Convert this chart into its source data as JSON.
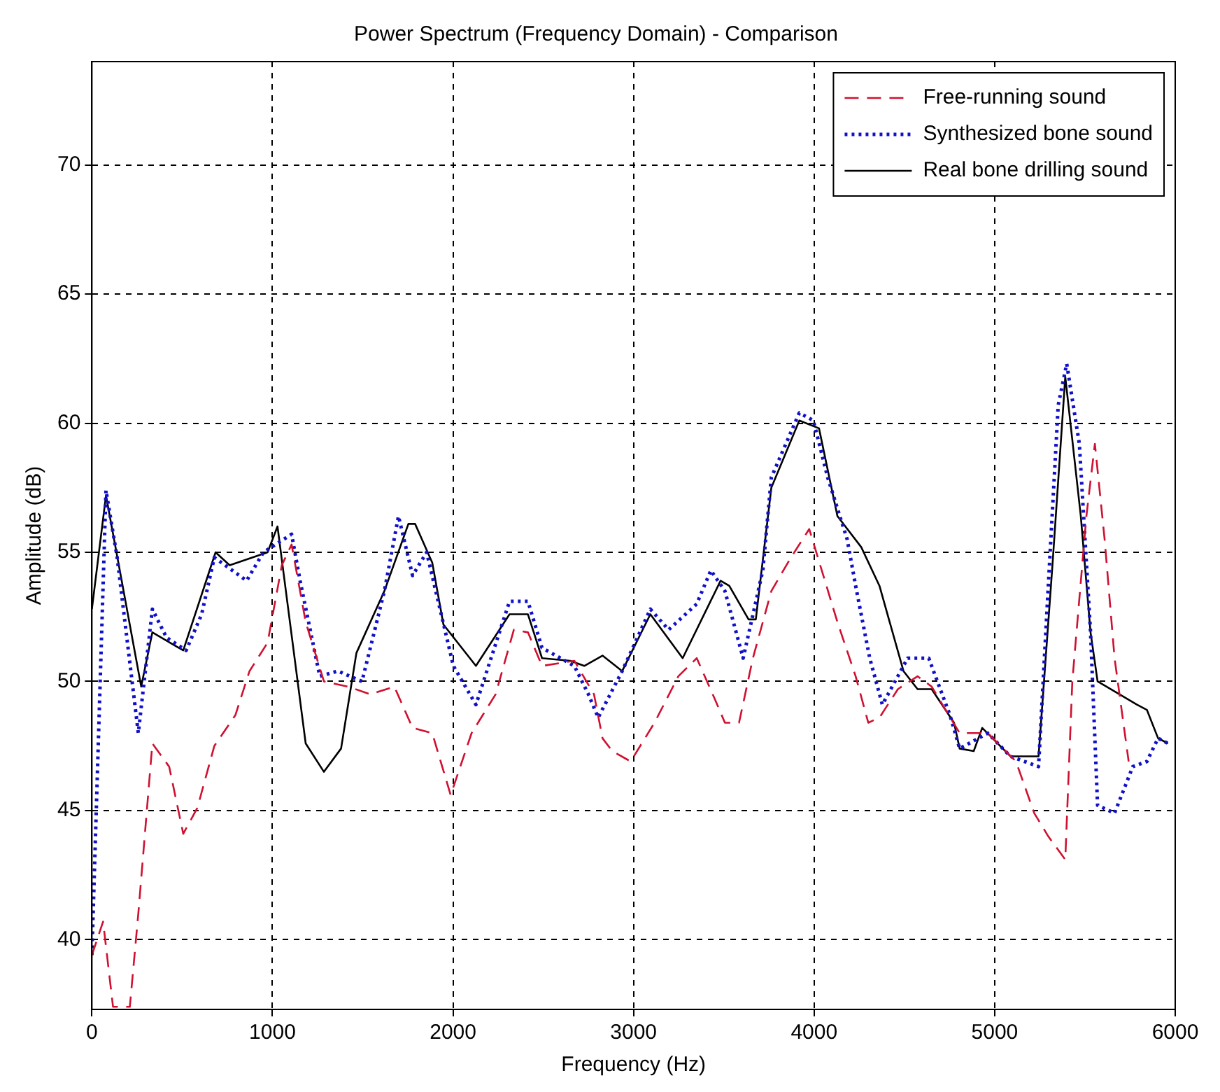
{
  "chart_data": {
    "type": "line",
    "title": "Power Spectrum (Frequency Domain) - Comparison",
    "xlabel": "Frequency (Hz)",
    "ylabel": "Amplitude (dB)",
    "xlim": [
      0,
      6000
    ],
    "xticks": [
      0,
      1000,
      2000,
      3000,
      4000,
      5000,
      6000
    ],
    "ylim": [
      37.3,
      74
    ],
    "yticks": [
      40,
      45,
      50,
      55,
      60,
      65,
      70
    ],
    "grid": true,
    "legend": "top right",
    "marker": "none",
    "series": [
      {
        "name": "Free-running sound",
        "color": "#d01030",
        "line_style": "dashed",
        "x": [
          0,
          62,
          117,
          210,
          257,
          335,
          428,
          506,
          584,
          678,
          795,
          873,
          973,
          1052,
          1106,
          1184,
          1285,
          1418,
          1543,
          1675,
          1776,
          1885,
          1987,
          2103,
          2236,
          2337,
          2415,
          2493,
          2672,
          2781,
          2828,
          2882,
          2984,
          3116,
          3248,
          3350,
          3451,
          3506,
          3584,
          3661,
          3763,
          3872,
          3973,
          4051,
          4129,
          4230,
          4300,
          4362,
          4464,
          4573,
          4651,
          4806,
          4962,
          5118,
          5219,
          5297,
          5391,
          5430,
          5508,
          5555,
          5609,
          5664,
          5742
        ],
        "values": [
          39.4,
          40.7,
          37.4,
          37.4,
          41,
          47.6,
          46.7,
          44.1,
          45.1,
          47.5,
          48.7,
          50.4,
          51.5,
          54.5,
          55.3,
          52.3,
          50,
          49.8,
          49.5,
          49.8,
          48.2,
          48,
          45.6,
          48,
          49.5,
          52,
          51.9,
          50.6,
          50.8,
          49.5,
          47.8,
          47.3,
          46.9,
          48.4,
          50.2,
          50.9,
          49.3,
          48.4,
          48.4,
          50.9,
          53.5,
          54.8,
          55.9,
          54.1,
          52.3,
          50.2,
          48.4,
          48.6,
          49.7,
          50.2,
          49.8,
          48,
          48,
          46.9,
          44.9,
          44,
          43.1,
          50,
          56.4,
          59.2,
          55.5,
          50.9,
          46.9
        ]
      },
      {
        "name": "Synthesized bone sound",
        "color": "#1010c8",
        "line_style": "dotted",
        "x": [
          0,
          78,
          140,
          257,
          335,
          413,
          522,
          608,
          678,
          857,
          950,
          1106,
          1153,
          1262,
          1363,
          1496,
          1620,
          1698,
          1776,
          1854,
          2002,
          2127,
          2313,
          2415,
          2493,
          2672,
          2750,
          2804,
          2937,
          3093,
          3194,
          3350,
          3428,
          3506,
          3607,
          3716,
          3763,
          3918,
          3996,
          4075,
          4183,
          4230,
          4308,
          4378,
          4518,
          4635,
          4752,
          4806,
          4962,
          5087,
          5243,
          5297,
          5352,
          5399,
          5469,
          5531,
          5570,
          5664,
          5765,
          5843,
          5905,
          5960
        ],
        "values": [
          39.4,
          57.4,
          54.8,
          48,
          52.8,
          51.7,
          51.2,
          52.6,
          54.8,
          53.9,
          55,
          55.7,
          53.9,
          50.2,
          50.4,
          50,
          53.5,
          56.4,
          54.1,
          55,
          50.6,
          49.1,
          53.1,
          53.1,
          51.3,
          50.6,
          49.5,
          48.6,
          50.4,
          52.8,
          52,
          53,
          54.3,
          53.5,
          50.9,
          54.3,
          57.9,
          60.4,
          60.1,
          57.9,
          55.5,
          53.7,
          50.9,
          49.1,
          50.9,
          50.9,
          48.7,
          47.4,
          48,
          47.1,
          46.7,
          53.7,
          60.7,
          62.3,
          59.2,
          51.9,
          45.2,
          44.9,
          46.7,
          46.9,
          47.8,
          47.6
        ]
      },
      {
        "name": "Real bone drilling sound",
        "color": "#000000",
        "line_style": "solid",
        "x": [
          0,
          78,
          273,
          335,
          506,
          685,
          763,
          973,
          1028,
          1184,
          1285,
          1380,
          1465,
          1620,
          1753,
          1790,
          1885,
          1947,
          2127,
          2313,
          2415,
          2493,
          2649,
          2727,
          2828,
          2937,
          3093,
          3272,
          3482,
          3530,
          3637,
          3677,
          3763,
          3918,
          4027,
          4129,
          4261,
          4362,
          4495,
          4573,
          4651,
          4775,
          4806,
          4884,
          4931,
          5087,
          5243,
          5321,
          5391,
          5477,
          5531,
          5570,
          5788,
          5843,
          5905,
          5960
        ],
        "values": [
          52.8,
          57.2,
          49.8,
          51.9,
          51.2,
          55,
          54.5,
          55,
          56,
          47.6,
          46.5,
          47.4,
          51.1,
          53.5,
          56.1,
          56.1,
          54.6,
          52.2,
          50.6,
          52.6,
          52.6,
          50.9,
          50.8,
          50.6,
          51,
          50.4,
          52.6,
          50.9,
          53.9,
          53.7,
          52.4,
          52.4,
          57.5,
          60.1,
          59.8,
          56.4,
          55.2,
          53.7,
          50.4,
          49.7,
          49.7,
          48.4,
          47.4,
          47.3,
          48.2,
          47.1,
          47.1,
          54.6,
          61.8,
          56.4,
          51.9,
          50,
          49.1,
          48.9,
          47.8,
          47.6
        ]
      }
    ]
  }
}
